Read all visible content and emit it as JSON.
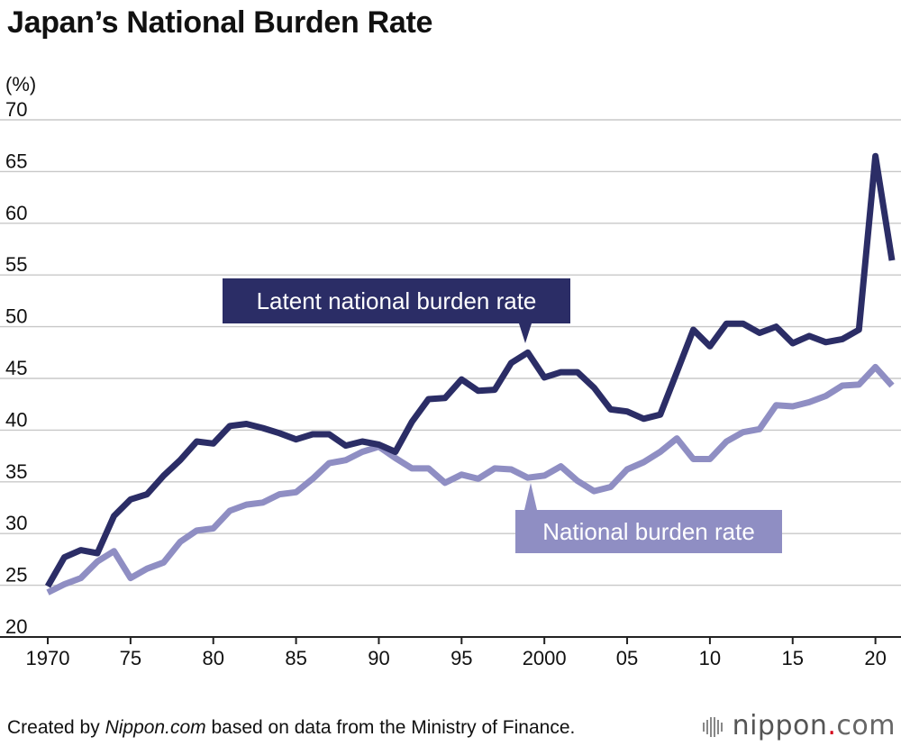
{
  "header": {
    "title": "Japan’s National Burden Rate"
  },
  "footer": {
    "prefix": "Created by ",
    "source_italic": "Nippon.com",
    "suffix": " based on data from the Ministry of Finance.",
    "logo_main": "nippon",
    "logo_dot": ".",
    "logo_com": "com"
  },
  "chart_data": {
    "type": "line",
    "ylabel": "(%)",
    "xlabel": "",
    "ylim": [
      20,
      70
    ],
    "yticks": [
      "20",
      "25",
      "30",
      "35",
      "40",
      "45",
      "50",
      "55",
      "60",
      "65",
      "70"
    ],
    "xlim": [
      1970,
      2021
    ],
    "xtick_years": [
      1970,
      1975,
      1980,
      1985,
      1990,
      1995,
      2000,
      2005,
      2010,
      2015,
      2020
    ],
    "xtick_labels": [
      "1970",
      "75",
      "80",
      "85",
      "90",
      "95",
      "2000",
      "05",
      "10",
      "15",
      "20"
    ],
    "grid": true,
    "x": [
      1970,
      1971,
      1972,
      1973,
      1974,
      1975,
      1976,
      1977,
      1978,
      1979,
      1980,
      1981,
      1982,
      1983,
      1984,
      1985,
      1986,
      1987,
      1988,
      1989,
      1990,
      1991,
      1992,
      1993,
      1994,
      1995,
      1996,
      1997,
      1998,
      1999,
      2000,
      2001,
      2002,
      2003,
      2004,
      2005,
      2006,
      2007,
      2008,
      2009,
      2010,
      2011,
      2012,
      2013,
      2014,
      2015,
      2016,
      2017,
      2018,
      2019,
      2020,
      2021
    ],
    "series": [
      {
        "name": "Latent national burden rate",
        "color": "#2b2d66",
        "values": [
          24.9,
          27.7,
          28.4,
          28.1,
          31.7,
          33.3,
          33.8,
          35.6,
          37.1,
          38.9,
          38.7,
          40.4,
          40.6,
          40.2,
          39.7,
          39.1,
          39.6,
          39.6,
          38.5,
          38.9,
          38.6,
          37.9,
          40.8,
          43.0,
          43.1,
          44.9,
          43.8,
          43.9,
          46.5,
          47.5,
          45.1,
          45.6,
          45.6,
          44.1,
          42.0,
          41.8,
          41.1,
          41.5,
          45.6,
          49.7,
          48.1,
          50.3,
          50.3,
          49.4,
          50.0,
          48.4,
          49.1,
          48.5,
          48.8,
          49.7,
          66.5,
          56.4
        ]
      },
      {
        "name": "National burden rate",
        "color": "#8f8ec3",
        "values": [
          24.3,
          25.1,
          25.7,
          27.3,
          28.3,
          25.7,
          26.6,
          27.2,
          29.2,
          30.3,
          30.5,
          32.2,
          32.8,
          33.0,
          33.8,
          34.0,
          35.3,
          36.8,
          37.1,
          37.9,
          38.4,
          37.3,
          36.3,
          36.3,
          34.9,
          35.7,
          35.3,
          36.3,
          36.2,
          35.4,
          35.6,
          36.5,
          35.1,
          34.1,
          34.5,
          36.2,
          36.9,
          37.9,
          39.2,
          37.2,
          37.2,
          38.9,
          39.8,
          40.1,
          42.4,
          42.3,
          42.7,
          43.3,
          44.3,
          44.4,
          46.1,
          44.3
        ]
      }
    ],
    "callouts": [
      {
        "series": 0,
        "text": "Latent national burden rate",
        "bg": "#2b2d66"
      },
      {
        "series": 1,
        "text": "National burden rate",
        "bg": "#8f8ec3"
      }
    ]
  }
}
